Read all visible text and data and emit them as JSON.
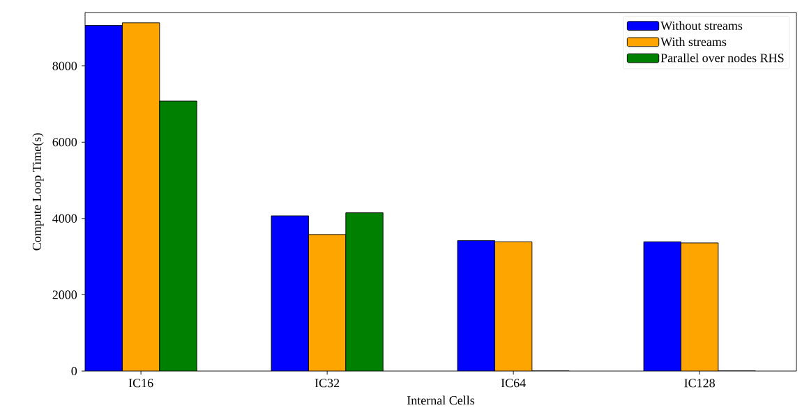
{
  "chart_data": {
    "type": "bar",
    "xlabel": "Internal Cells",
    "ylabel": "Compute Loop Time(s)",
    "categories": [
      "IC16",
      "IC32",
      "IC64",
      "IC128"
    ],
    "series": [
      {
        "name": "Without streams",
        "color": "#0000ff",
        "values": [
          9060,
          4070,
          3420,
          3390
        ]
      },
      {
        "name": "With streams",
        "color": "#ffa500",
        "values": [
          9130,
          3580,
          3390,
          3360
        ]
      },
      {
        "name": "Parallel over nodes RHS",
        "color": "#008000",
        "values": [
          7080,
          4150,
          0,
          0
        ]
      }
    ],
    "ylim": [
      0,
      9400
    ],
    "yticks": [
      0,
      2000,
      4000,
      6000,
      8000
    ],
    "grid": false,
    "legend": "top right"
  }
}
